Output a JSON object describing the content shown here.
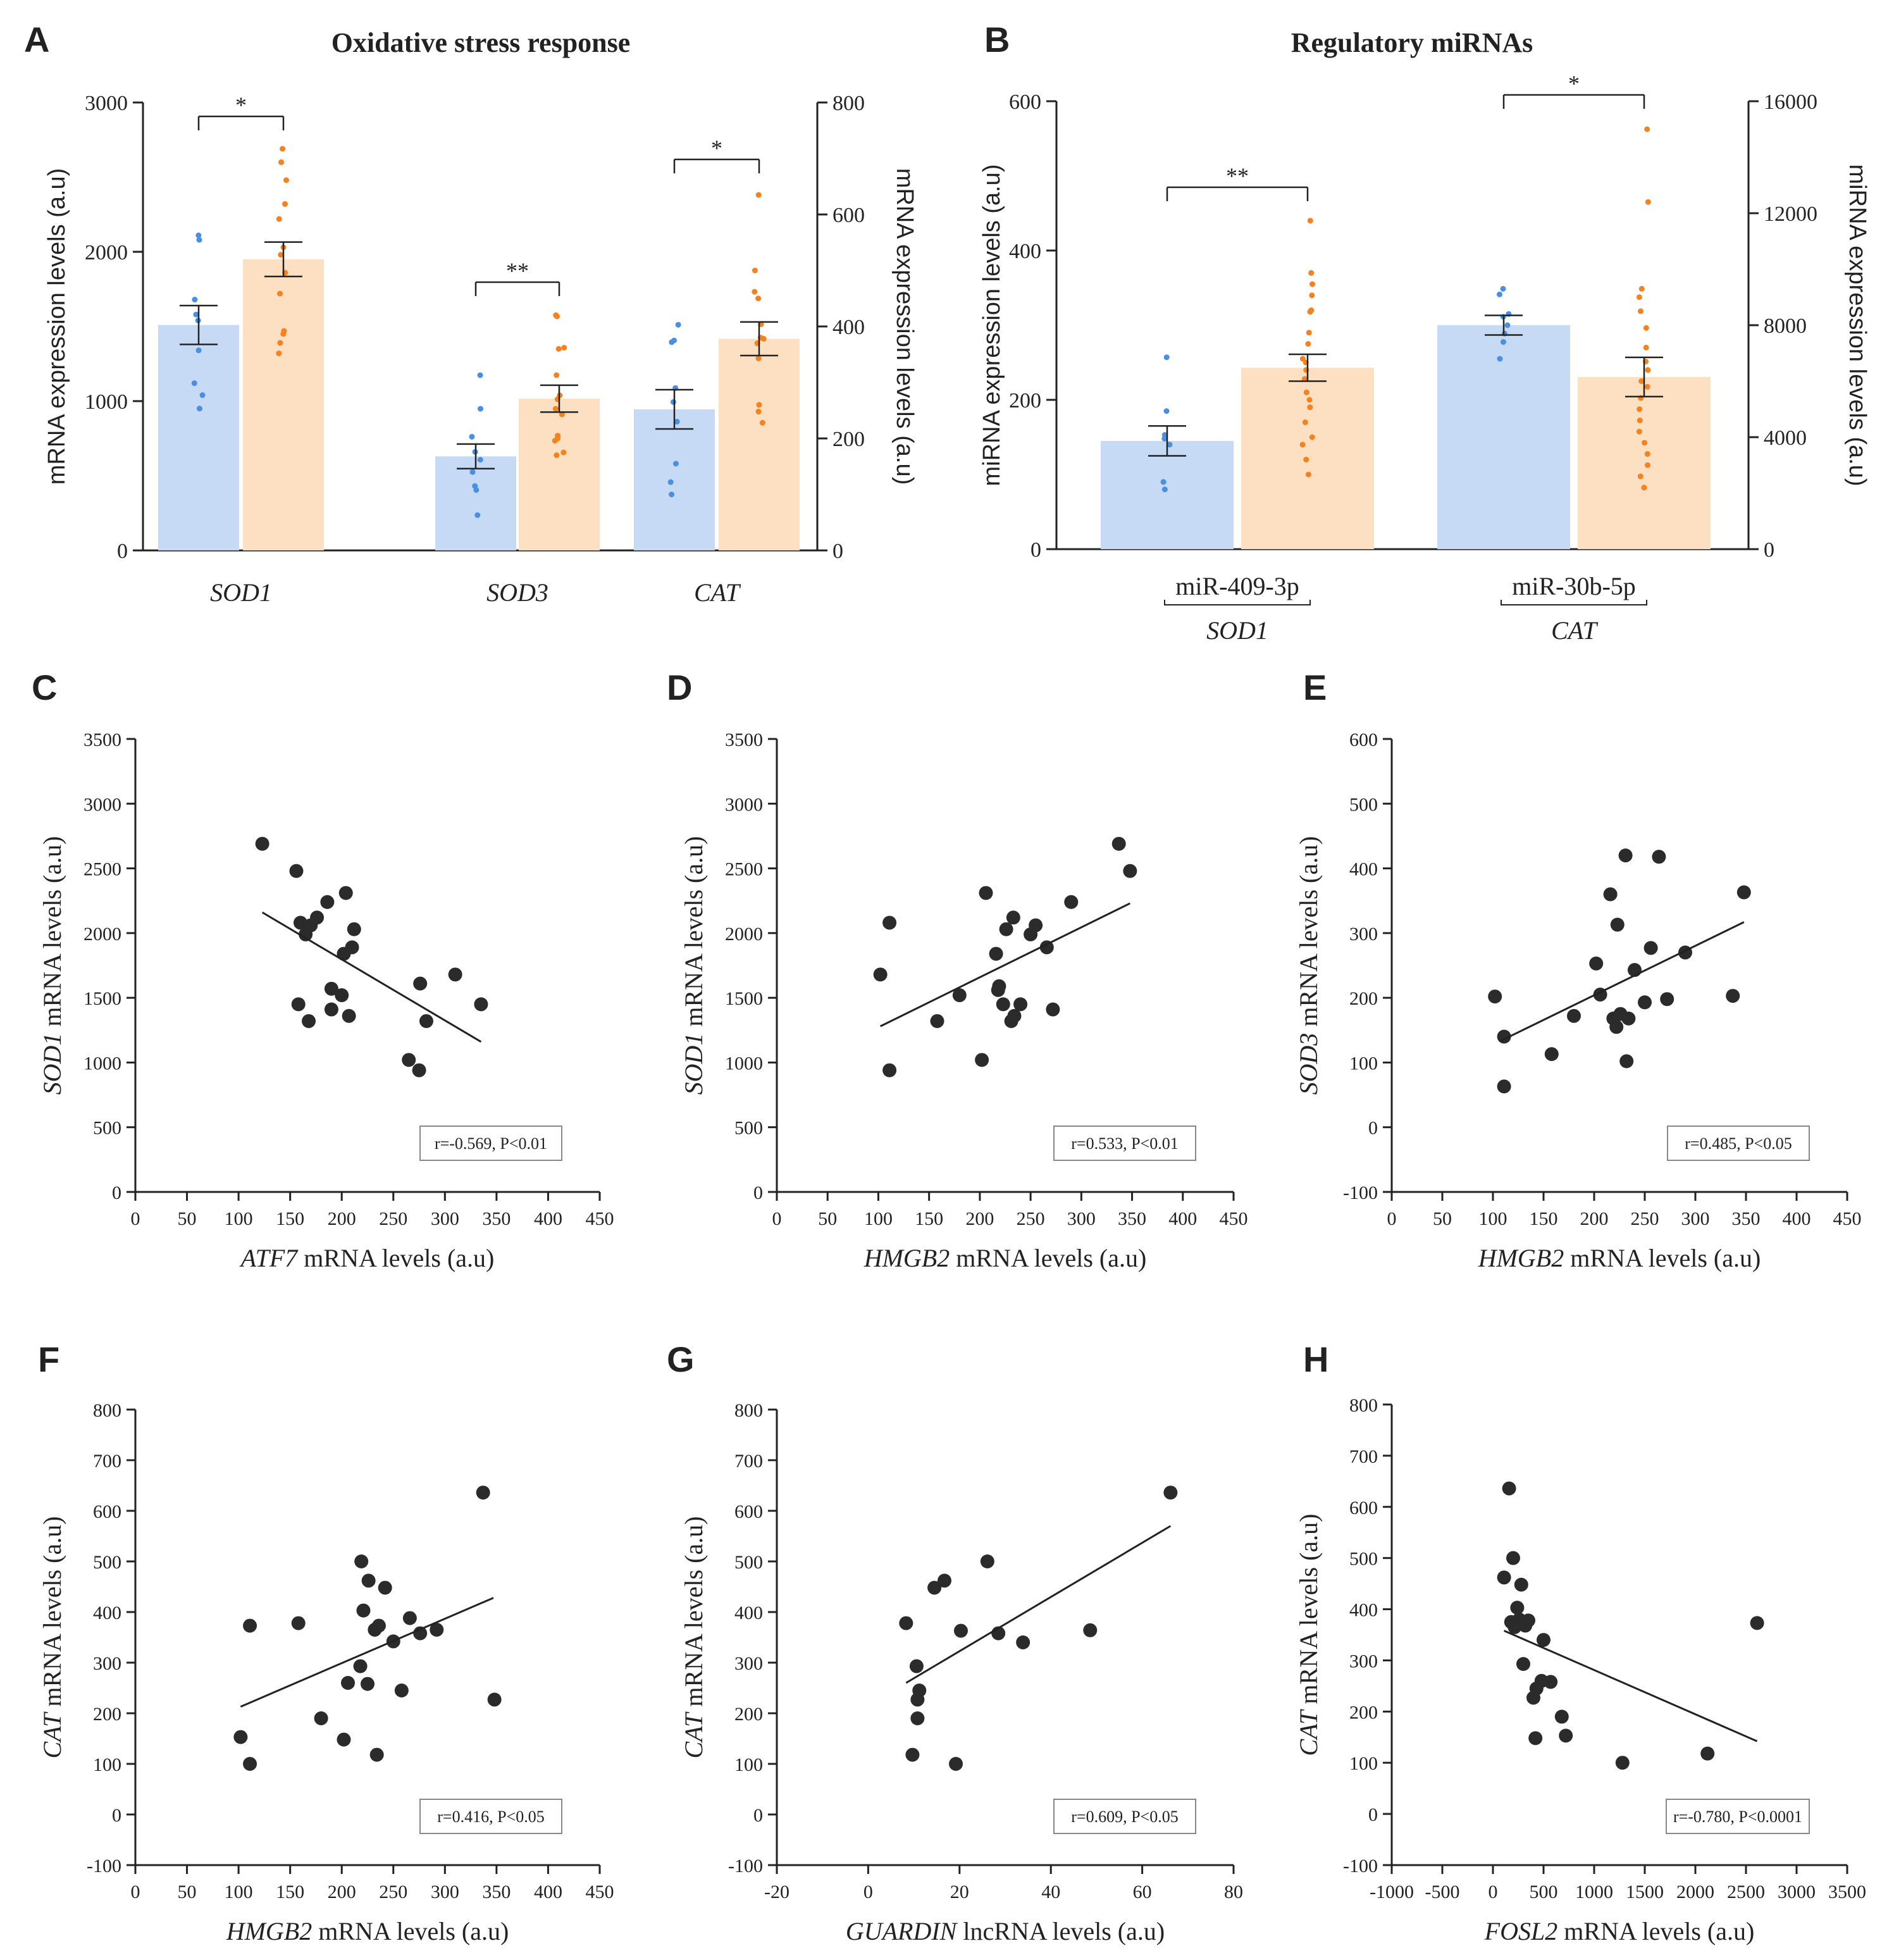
{
  "colors": {
    "healthy_bar": "#c6daf6",
    "healthy_dot": "#4a90e2",
    "disease_bar": "#fde0c2",
    "disease_dot": "#f5821f",
    "ink": "#222222",
    "scatter_dot": "#2b2b2b"
  },
  "chart_data": [
    {
      "panel": "A",
      "type": "bar",
      "title": "Oxidative stress response",
      "ylabel": "mRNA expression levels (a.u)",
      "ylabel_right": "mRNA expression levels (a.u)",
      "ylim": [
        0,
        3000
      ],
      "yticks": [
        0,
        1000,
        2000,
        3000
      ],
      "ylim_right": [
        0,
        800
      ],
      "yticks_right": [
        0,
        200,
        400,
        600,
        800
      ],
      "groups": [
        {
          "label": "SOD1",
          "axis": "left",
          "bars": [
            {
              "value": 1510,
              "err": 130,
              "points": [
                2110,
                2080,
                1680,
                1580,
                1540,
                1340,
                1120,
                1040,
                950
              ]
            },
            {
              "value": 1950,
              "err": 115,
              "points": [
                2690,
                2600,
                2480,
                2320,
                2220,
                2030,
                1980,
                1860,
                1720,
                1470,
                1450,
                1390,
                1320
              ]
            }
          ],
          "significance": "*"
        },
        {
          "label": "SOD3",
          "axis": "right",
          "bars": [
            {
              "value": 168,
              "err": 22,
              "points": [
                313,
                253,
                203,
                176,
                162,
                140,
                115,
                108,
                63
              ]
            },
            {
              "value": 271,
              "err": 24,
              "points": [
                418,
                420,
                362,
                360,
                313,
                277,
                270,
                253,
                243,
                205,
                200,
                196,
                175,
                170
              ]
            }
          ],
          "significance": "**"
        },
        {
          "label": "CAT",
          "axis": "right",
          "bars": [
            {
              "value": 252,
              "err": 35,
              "points": [
                403,
                375,
                372,
                290,
                265,
                230,
                155,
                122,
                100
              ]
            },
            {
              "value": 378,
              "err": 30,
              "points": [
                635,
                500,
                462,
                450,
                404,
                380,
                378,
                370,
                343,
                260,
                248,
                228
              ]
            }
          ],
          "significance": "*"
        }
      ]
    },
    {
      "panel": "B",
      "type": "bar",
      "title": "Regulatory miRNAs",
      "ylabel": "miRNA expression levels (a.u)",
      "ylabel_right": "miRNA expression levels (a.u)",
      "ylim": [
        0,
        600
      ],
      "yticks": [
        0,
        200,
        400,
        600
      ],
      "ylim_right": [
        0,
        16000
      ],
      "yticks_right": [
        0,
        4000,
        8000,
        12000,
        16000
      ],
      "groups": [
        {
          "label": "miR-409-3p",
          "sublabel": "SOD1",
          "axis": "left",
          "bars": [
            {
              "value": 145,
              "err": 20,
              "points": [
                257,
                185,
                153,
                148,
                140,
                90,
                80
              ]
            },
            {
              "value": 243,
              "err": 18,
              "points": [
                440,
                370,
                355,
                340,
                320,
                318,
                290,
                275,
                255,
                250,
                240,
                228,
                210,
                200,
                190,
                170,
                150,
                140,
                120,
                100
              ]
            }
          ],
          "significance": "**"
        },
        {
          "label": "miR-30b-5p",
          "sublabel": "CAT",
          "axis": "right",
          "bars": [
            {
              "value": 8000,
              "err": 350,
              "points": [
                9300,
                9100,
                8400,
                8300,
                8000,
                7700,
                7400,
                6800
              ]
            },
            {
              "value": 6150,
              "err": 700,
              "points": [
                15000,
                12400,
                9300,
                9000,
                8500,
                7900,
                7200,
                6700,
                6400,
                6000,
                5800,
                5400,
                5000,
                4600,
                4200,
                3800,
                3400,
                3000,
                2600,
                2200
              ]
            }
          ],
          "significance": "*"
        }
      ]
    },
    {
      "panel": "C",
      "type": "scatter",
      "xlabel_gene": "ATF7",
      "xlabel_rest": " mRNA levels (a.u)",
      "ylabel_gene": "SOD1",
      "ylabel_rest": " mRNA levels (a.u)",
      "xlim": [
        0,
        450
      ],
      "xticks": [
        0,
        50,
        100,
        150,
        200,
        250,
        300,
        350,
        400,
        450
      ],
      "ylim": [
        0,
        3500
      ],
      "yticks": [
        0,
        500,
        1000,
        1500,
        2000,
        2500,
        3000,
        3500
      ],
      "points": [
        [
          123,
          2690
        ],
        [
          156,
          2480
        ],
        [
          160,
          2080
        ],
        [
          165,
          1990
        ],
        [
          170,
          2060
        ],
        [
          176,
          2120
        ],
        [
          186,
          2240
        ],
        [
          204,
          2310
        ],
        [
          212,
          2030
        ],
        [
          210,
          1890
        ],
        [
          202,
          1840
        ],
        [
          158,
          1450
        ],
        [
          168,
          1320
        ],
        [
          190,
          1570
        ],
        [
          190,
          1410
        ],
        [
          200,
          1520
        ],
        [
          207,
          1360
        ],
        [
          276,
          1610
        ],
        [
          310,
          1680
        ],
        [
          282,
          1320
        ],
        [
          265,
          1020
        ],
        [
          275,
          940
        ],
        [
          335,
          1450
        ]
      ],
      "fit": [
        [
          123,
          2160
        ],
        [
          335,
          1160
        ]
      ],
      "annotation": "r=-0.569, P<0.01"
    },
    {
      "panel": "D",
      "type": "scatter",
      "xlabel_gene": "HMGB2",
      "xlabel_rest": "  mRNA levels (a.u)",
      "ylabel_gene": "SOD1",
      "ylabel_rest": " mRNA levels (a.u)",
      "xlim": [
        0,
        450
      ],
      "xticks": [
        0,
        50,
        100,
        150,
        200,
        250,
        300,
        350,
        400,
        450
      ],
      "ylim": [
        0,
        3500
      ],
      "yticks": [
        0,
        500,
        1000,
        1500,
        2000,
        2500,
        3000,
        3500
      ],
      "points": [
        [
          102,
          1680
        ],
        [
          111,
          2080
        ],
        [
          111,
          940
        ],
        [
          158,
          1320
        ],
        [
          180,
          1520
        ],
        [
          202,
          1020
        ],
        [
          206,
          2310
        ],
        [
          216,
          1840
        ],
        [
          219,
          1590
        ],
        [
          218,
          1560
        ],
        [
          223,
          1450
        ],
        [
          226,
          2030
        ],
        [
          233,
          2120
        ],
        [
          231,
          1320
        ],
        [
          234,
          1360
        ],
        [
          240,
          1450
        ],
        [
          250,
          1990
        ],
        [
          255,
          2060
        ],
        [
          266,
          1890
        ],
        [
          272,
          1410
        ],
        [
          290,
          2240
        ],
        [
          337,
          2690
        ],
        [
          348,
          2480
        ]
      ],
      "fit": [
        [
          102,
          1280
        ],
        [
          348,
          2230
        ]
      ],
      "annotation": "r=0.533, P<0.01"
    },
    {
      "panel": "E",
      "type": "scatter",
      "xlabel_gene": "HMGB2",
      "xlabel_rest": "  mRNA levels (a.u)",
      "ylabel_gene": "SOD3",
      "ylabel_rest": " mRNA levels (a.u)",
      "xlim": [
        0,
        450
      ],
      "xticks": [
        0,
        50,
        100,
        150,
        200,
        250,
        300,
        350,
        400,
        450
      ],
      "ylim": [
        -100,
        600
      ],
      "yticks": [
        -100,
        0,
        100,
        200,
        300,
        400,
        500,
        600
      ],
      "points": [
        [
          102,
          202
        ],
        [
          111,
          140
        ],
        [
          111,
          63
        ],
        [
          158,
          113
        ],
        [
          180,
          172
        ],
        [
          202,
          253
        ],
        [
          206,
          205
        ],
        [
          216,
          360
        ],
        [
          219,
          168
        ],
        [
          222,
          155
        ],
        [
          223,
          313
        ],
        [
          226,
          175
        ],
        [
          231,
          420
        ],
        [
          232,
          102
        ],
        [
          234,
          168
        ],
        [
          240,
          243
        ],
        [
          250,
          193
        ],
        [
          256,
          277
        ],
        [
          264,
          418
        ],
        [
          272,
          198
        ],
        [
          290,
          270
        ],
        [
          337,
          203
        ],
        [
          348,
          363
        ]
      ],
      "fit": [
        [
          107,
          133
        ],
        [
          348,
          317
        ]
      ],
      "annotation": "r=0.485, P<0.05"
    },
    {
      "panel": "F",
      "type": "scatter",
      "xlabel_gene": "HMGB2",
      "xlabel_rest": "  mRNA levels (a.u)",
      "ylabel_gene": "CAT",
      "ylabel_rest": " mRNA levels (a.u)",
      "xlim": [
        0,
        450
      ],
      "xticks": [
        0,
        50,
        100,
        150,
        200,
        250,
        300,
        350,
        400,
        450
      ],
      "ylim": [
        -100,
        800
      ],
      "yticks": [
        -100,
        0,
        100,
        200,
        300,
        400,
        500,
        600,
        700,
        800
      ],
      "points": [
        [
          102,
          153
        ],
        [
          111,
          100
        ],
        [
          111,
          373
        ],
        [
          158,
          378
        ],
        [
          180,
          190
        ],
        [
          202,
          148
        ],
        [
          206,
          260
        ],
        [
          218,
          293
        ],
        [
          219,
          500
        ],
        [
          221,
          403
        ],
        [
          225,
          258
        ],
        [
          226,
          462
        ],
        [
          232,
          365
        ],
        [
          234,
          118
        ],
        [
          236,
          373
        ],
        [
          242,
          448
        ],
        [
          250,
          342
        ],
        [
          258,
          245
        ],
        [
          266,
          388
        ],
        [
          276,
          358
        ],
        [
          292,
          365
        ],
        [
          337,
          636
        ],
        [
          348,
          227
        ]
      ],
      "fit": [
        [
          102,
          213
        ],
        [
          347,
          428
        ]
      ],
      "annotation": "r=0.416, P<0.05"
    },
    {
      "panel": "G",
      "type": "scatter",
      "xlabel_gene": "GUARDIN",
      "xlabel_rest": "  lncRNA levels (a.u)",
      "ylabel_gene": "CAT",
      "ylabel_rest": " mRNA levels (a.u)",
      "xlim": [
        -20,
        80
      ],
      "xticks": [
        -20,
        0,
        20,
        40,
        60,
        80
      ],
      "ylim": [
        -100,
        800
      ],
      "yticks": [
        -100,
        0,
        100,
        200,
        300,
        400,
        500,
        600,
        700,
        800
      ],
      "points": [
        [
          8.3,
          378
        ],
        [
          9.7,
          118
        ],
        [
          10.6,
          293
        ],
        [
          10.8,
          190
        ],
        [
          10.8,
          227
        ],
        [
          11.2,
          245
        ],
        [
          14.5,
          448
        ],
        [
          16.7,
          462
        ],
        [
          19.2,
          100
        ],
        [
          20.3,
          363
        ],
        [
          26.1,
          500
        ],
        [
          28.5,
          358
        ],
        [
          33.9,
          340
        ],
        [
          48.6,
          364
        ],
        [
          66.2,
          636
        ]
      ],
      "fit": [
        [
          8.3,
          260
        ],
        [
          66.2,
          570
        ]
      ],
      "annotation": "r=0.609, P<0.05"
    },
    {
      "panel": "H",
      "type": "scatter",
      "xlabel_gene": "FOSL2",
      "xlabel_rest": "  mRNA levels (a.u)",
      "ylabel_gene": "CAT",
      "ylabel_rest": " mRNA levels (a.u)",
      "xlim": [
        -1000,
        3500
      ],
      "xticks": [
        -1000,
        -500,
        0,
        500,
        1000,
        1500,
        2000,
        2500,
        3000,
        3500
      ],
      "ylim": [
        -100,
        800
      ],
      "yticks": [
        -100,
        0,
        100,
        200,
        300,
        400,
        500,
        600,
        700,
        800
      ],
      "points": [
        [
          110,
          462
        ],
        [
          160,
          636
        ],
        [
          180,
          375
        ],
        [
          200,
          500
        ],
        [
          215,
          365
        ],
        [
          240,
          403
        ],
        [
          260,
          380
        ],
        [
          280,
          448
        ],
        [
          300,
          293
        ],
        [
          320,
          368
        ],
        [
          350,
          378
        ],
        [
          400,
          227
        ],
        [
          420,
          148
        ],
        [
          430,
          245
        ],
        [
          480,
          260
        ],
        [
          500,
          340
        ],
        [
          570,
          258
        ],
        [
          680,
          190
        ],
        [
          720,
          153
        ],
        [
          1280,
          100
        ],
        [
          2120,
          118
        ],
        [
          2610,
          373
        ]
      ],
      "fit": [
        [
          110,
          358
        ],
        [
          2610,
          142
        ]
      ],
      "annotation": "r=-0.780, P<0.0001"
    }
  ]
}
